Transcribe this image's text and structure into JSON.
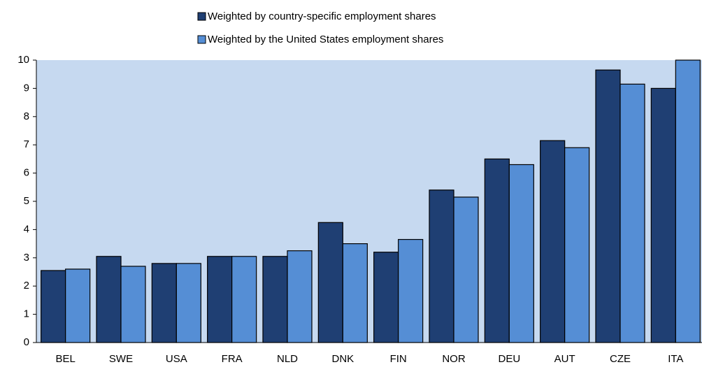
{
  "chart_data": {
    "type": "bar",
    "categories": [
      "BEL",
      "SWE",
      "USA",
      "FRA",
      "NLD",
      "DNK",
      "FIN",
      "NOR",
      "DEU",
      "AUT",
      "CZE",
      "ITA"
    ],
    "series": [
      {
        "name": "Weighted by country-specific employment shares",
        "color": "#1f3f73",
        "values": [
          2.55,
          3.05,
          2.8,
          3.05,
          3.05,
          4.25,
          3.2,
          5.4,
          6.5,
          7.15,
          9.65,
          9.0
        ]
      },
      {
        "name": "Weighted by the United States employment shares",
        "color": "#558ed5",
        "values": [
          2.6,
          2.7,
          2.8,
          3.05,
          3.25,
          3.5,
          3.65,
          5.15,
          6.3,
          6.9,
          9.15,
          10.0
        ]
      }
    ],
    "ylim": [
      0,
      10
    ],
    "yticks": [
      0,
      1,
      2,
      3,
      4,
      5,
      6,
      7,
      8,
      9,
      10
    ],
    "plot_background": "#c6d9f0",
    "legend": "top"
  }
}
